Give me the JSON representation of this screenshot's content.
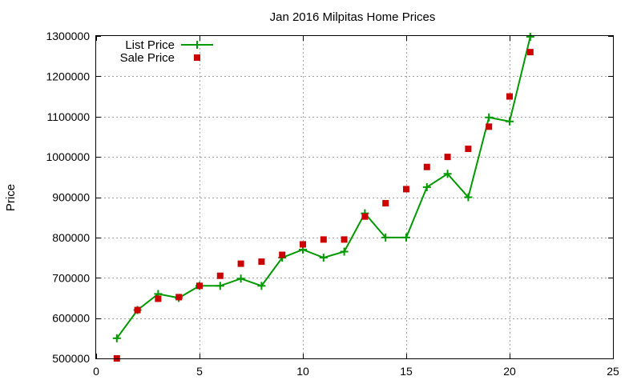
{
  "chart_data": {
    "type": "line",
    "title": "Jan 2016 Milpitas Home Prices",
    "xlabel": "",
    "ylabel": "Price",
    "xlim": [
      0,
      25
    ],
    "ylim": [
      500000,
      1300000
    ],
    "xticks": [
      0,
      5,
      10,
      15,
      20,
      25
    ],
    "yticks": [
      500000,
      600000,
      700000,
      800000,
      900000,
      1000000,
      1100000,
      1200000,
      1300000
    ],
    "grid": true,
    "legend_position": "top-left",
    "series": [
      {
        "name": "List Price",
        "style": "line-with-plus-markers",
        "color": "#009900",
        "x": [
          1,
          2,
          3,
          4,
          5,
          6,
          7,
          8,
          9,
          10,
          11,
          12,
          13,
          14,
          15,
          16,
          17,
          18,
          19,
          20,
          21
        ],
        "y": [
          550000,
          620000,
          660000,
          650000,
          680000,
          680000,
          698000,
          680000,
          750000,
          770000,
          750000,
          765000,
          860000,
          800000,
          800000,
          925000,
          958000,
          900000,
          1098000,
          1088000,
          1298000
        ]
      },
      {
        "name": "Sale Price",
        "style": "square-markers",
        "color": "#cc0000",
        "x": [
          1,
          2,
          3,
          4,
          5,
          6,
          7,
          8,
          9,
          10,
          11,
          12,
          13,
          14,
          15,
          16,
          17,
          18,
          19,
          20,
          21
        ],
        "y": [
          500000,
          620000,
          648000,
          652000,
          680000,
          705000,
          735000,
          740000,
          757000,
          783000,
          795000,
          795000,
          852000,
          885000,
          920000,
          975000,
          1000000,
          1020000,
          1075000,
          1150000,
          1260000
        ]
      }
    ]
  }
}
